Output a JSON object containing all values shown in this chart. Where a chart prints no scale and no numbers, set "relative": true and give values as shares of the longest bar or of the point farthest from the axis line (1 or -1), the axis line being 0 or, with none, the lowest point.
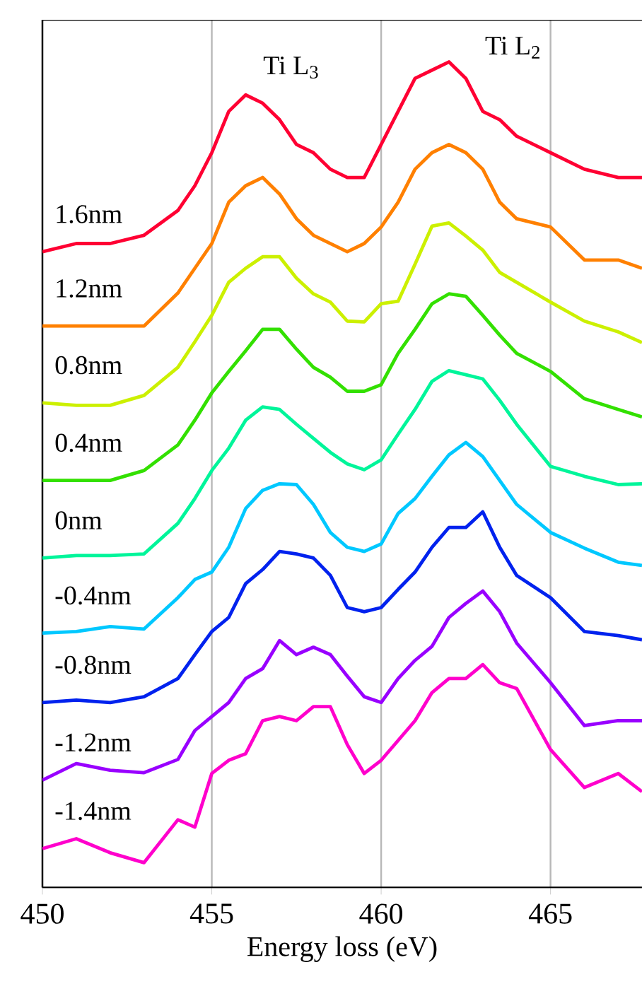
{
  "chart_data": {
    "type": "line",
    "relative": true,
    "xlabel": "Energy loss (eV)",
    "xlim": [
      450,
      467.7
    ],
    "xticks": [
      450,
      455,
      460,
      465
    ],
    "grid": "x",
    "marker": "none",
    "line_style": "solid",
    "x": [
      450,
      451,
      452,
      453,
      454,
      454.5,
      455,
      455.5,
      456,
      456.5,
      457,
      457.5,
      458,
      458.5,
      459,
      459.5,
      460,
      460.5,
      461,
      461.5,
      462,
      462.5,
      463,
      463.5,
      464,
      465,
      466,
      467,
      467.7
    ],
    "annotations": [
      "Ti L$_{3}$",
      "Ti L$_{2}$"
    ],
    "series": [
      {
        "name": "1.6nm",
        "color": "#ff0033",
        "values": [
          0.77,
          0.78,
          0.78,
          0.79,
          0.82,
          0.85,
          0.89,
          0.94,
          0.96,
          0.95,
          0.93,
          0.9,
          0.89,
          0.87,
          0.86,
          0.86,
          0.9,
          0.94,
          0.98,
          0.99,
          1.0,
          0.98,
          0.94,
          0.93,
          0.91,
          0.89,
          0.87,
          0.86,
          0.86
        ]
      },
      {
        "name": "1.2nm",
        "color": "#ff8000",
        "values": [
          0.68,
          0.68,
          0.68,
          0.68,
          0.72,
          0.75,
          0.78,
          0.83,
          0.85,
          0.86,
          0.84,
          0.81,
          0.79,
          0.78,
          0.77,
          0.78,
          0.8,
          0.83,
          0.87,
          0.89,
          0.9,
          0.89,
          0.87,
          0.83,
          0.81,
          0.8,
          0.76,
          0.76,
          0.75
        ]
      },
      {
        "name": "0.8nm",
        "color": "#ccf000",
        "values": [
          0.587,
          0.584,
          0.584,
          0.596,
          0.63,
          0.661,
          0.693,
          0.733,
          0.75,
          0.764,
          0.764,
          0.738,
          0.719,
          0.709,
          0.686,
          0.685,
          0.707,
          0.71,
          0.755,
          0.801,
          0.805,
          0.789,
          0.772,
          0.745,
          0.733,
          0.709,
          0.686,
          0.673,
          0.66
        ]
      },
      {
        "name": "0.4nm",
        "color": "#33e000",
        "values": [
          0.493,
          0.493,
          0.493,
          0.505,
          0.536,
          0.566,
          0.599,
          0.625,
          0.65,
          0.676,
          0.676,
          0.652,
          0.63,
          0.618,
          0.601,
          0.601,
          0.609,
          0.647,
          0.676,
          0.707,
          0.719,
          0.716,
          0.693,
          0.669,
          0.647,
          0.625,
          0.592,
          0.579,
          0.57
        ]
      },
      {
        "name": "0nm",
        "color": "#00f59a",
        "values": [
          0.399,
          0.402,
          0.402,
          0.404,
          0.441,
          0.471,
          0.505,
          0.532,
          0.566,
          0.582,
          0.579,
          0.561,
          0.544,
          0.527,
          0.513,
          0.506,
          0.518,
          0.549,
          0.579,
          0.613,
          0.626,
          0.621,
          0.616,
          0.59,
          0.561,
          0.51,
          0.498,
          0.488,
          0.489
        ]
      },
      {
        "name": "-0.4nm",
        "color": "#00c8ff",
        "values": [
          0.308,
          0.31,
          0.316,
          0.313,
          0.351,
          0.373,
          0.382,
          0.412,
          0.459,
          0.481,
          0.489,
          0.488,
          0.464,
          0.43,
          0.412,
          0.407,
          0.416,
          0.453,
          0.471,
          0.498,
          0.524,
          0.539,
          0.522,
          0.493,
          0.464,
          0.43,
          0.411,
          0.394,
          0.39
        ]
      },
      {
        "name": "-0.8nm",
        "color": "#0022ee",
        "values": [
          0.224,
          0.227,
          0.224,
          0.231,
          0.253,
          0.282,
          0.31,
          0.327,
          0.368,
          0.385,
          0.407,
          0.404,
          0.399,
          0.378,
          0.339,
          0.334,
          0.339,
          0.361,
          0.382,
          0.412,
          0.436,
          0.436,
          0.455,
          0.412,
          0.378,
          0.351,
          0.31,
          0.305,
          0.3
        ]
      },
      {
        "name": "-1.2nm",
        "color": "#9900ff",
        "values": [
          0.13,
          0.15,
          0.142,
          0.139,
          0.155,
          0.19,
          0.207,
          0.224,
          0.253,
          0.265,
          0.299,
          0.282,
          0.291,
          0.282,
          0.256,
          0.231,
          0.224,
          0.253,
          0.275,
          0.292,
          0.327,
          0.344,
          0.359,
          0.334,
          0.296,
          0.248,
          0.196,
          0.202,
          0.202
        ]
      },
      {
        "name": "-1.4nm",
        "color": "#ff00cc",
        "values": [
          0.047,
          0.059,
          0.042,
          0.03,
          0.082,
          0.073,
          0.138,
          0.154,
          0.162,
          0.202,
          0.207,
          0.202,
          0.219,
          0.219,
          0.173,
          0.138,
          0.154,
          0.178,
          0.202,
          0.236,
          0.253,
          0.253,
          0.27,
          0.248,
          0.241,
          0.167,
          0.121,
          0.138,
          0.116
        ]
      }
    ]
  }
}
